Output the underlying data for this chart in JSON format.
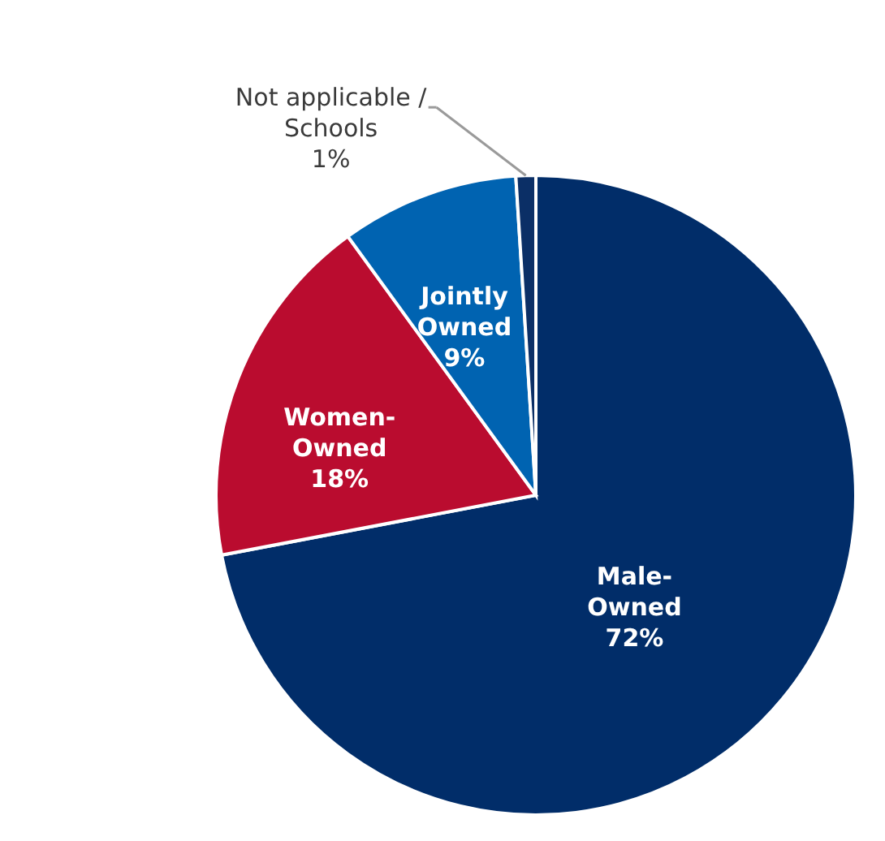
{
  "chart_data": {
    "type": "pie",
    "categories": [
      "Male-Owned",
      "Women-Owned",
      "Jointly Owned",
      "Not applicable / Schools"
    ],
    "values": [
      72,
      18,
      9,
      1
    ],
    "value_labels": [
      "72%",
      "18%",
      "9%",
      "1%"
    ],
    "colors": [
      "#012d69",
      "#ba0c2f",
      "#0063b1",
      "#0b2f66"
    ]
  }
}
